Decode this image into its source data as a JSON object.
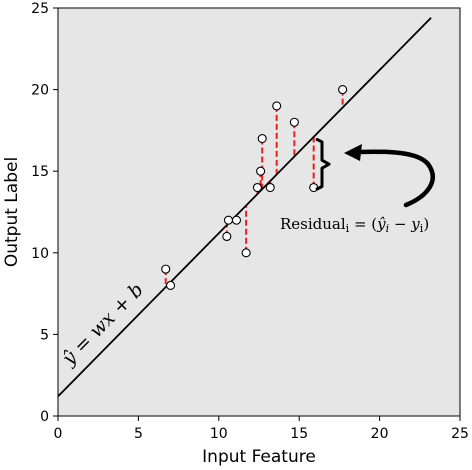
{
  "chart_data": {
    "type": "scatter",
    "xlabel": "Input Feature",
    "ylabel": "Output Label",
    "xlim": [
      0,
      25
    ],
    "ylim": [
      0,
      25
    ],
    "xticks": [
      0,
      5,
      10,
      15,
      20,
      25
    ],
    "yticks": [
      0,
      5,
      10,
      15,
      20,
      25
    ],
    "grid": false,
    "background_color": "#e6e6e6",
    "points": [
      {
        "x": 6.7,
        "y": 9.0
      },
      {
        "x": 7.0,
        "y": 8.0
      },
      {
        "x": 10.5,
        "y": 11.0
      },
      {
        "x": 10.6,
        "y": 12.0
      },
      {
        "x": 11.1,
        "y": 12.0
      },
      {
        "x": 11.7,
        "y": 10.0
      },
      {
        "x": 12.4,
        "y": 14.0
      },
      {
        "x": 12.6,
        "y": 15.0
      },
      {
        "x": 12.7,
        "y": 17.0
      },
      {
        "x": 13.2,
        "y": 14.0
      },
      {
        "x": 13.6,
        "y": 19.0
      },
      {
        "x": 14.7,
        "y": 18.0
      },
      {
        "x": 15.9,
        "y": 14.0
      },
      {
        "x": 17.7,
        "y": 20.0
      }
    ],
    "fit_line": {
      "w": 1.0,
      "b": 1.2,
      "x_range": [
        0,
        23.2
      ]
    },
    "residual_color": "#e8201c",
    "annotations": {
      "line_equation": {
        "prefix": "ŷ",
        "rest": " = wx + b"
      },
      "residual": {
        "base": "Residual",
        "sub": "i",
        "eq": " = (",
        "yhat": "ŷ",
        "yhat_sub": "i",
        "minus": " − ",
        "y": "y",
        "y_sub": "i",
        "close": ")"
      }
    }
  }
}
